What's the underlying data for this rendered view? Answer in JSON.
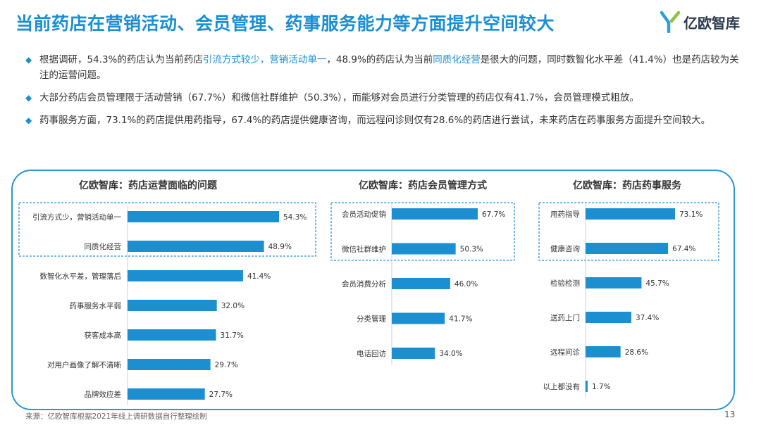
{
  "title": "当前药店在营销活动、会员管理、药事服务能力等方面提升空间较大",
  "logo": {
    "text": "亿欧智库",
    "icon": "logo-y-icon"
  },
  "bullets": [
    {
      "p1": "根据调研，54.3%的药店认为当前药店",
      "h1": "引流方式较少，营销活动单一",
      "p2": "，48.9%的药店认为当前",
      "h2": "同质化经营",
      "p3": "是很大的问题，同时数智化水平差（41.4%）也是药店较为关注的运营问题。"
    },
    {
      "text": "大部分药店会员管理限于活动营销（67.7%）和微信社群维护（50.3%），而能够对会员进行分类管理的药店仅有41.7%，会员管理模式粗放。"
    },
    {
      "text": "药事服务方面，73.1%的药店提供用药指导，67.4%的药店提供健康咨询，而远程问诊则仅有28.6%的药店进行尝试，未来药店在药事服务方面提升空间较大。"
    }
  ],
  "colors": {
    "accent": "#1b8fd3",
    "bar": "#1c8fd0",
    "frame": "#2b95d6"
  },
  "chart_data": [
    {
      "type": "bar",
      "orientation": "horizontal",
      "title": "亿欧智库：药店运营面临的问题",
      "categories": [
        "引流方式少，营销活动单一",
        "同质化经营",
        "数智化水平差，管理落后",
        "药事服务水平弱",
        "获客成本高",
        "对用户画像了解不清晰",
        "品牌效应差"
      ],
      "values": [
        54.3,
        48.9,
        41.4,
        32.0,
        31.7,
        29.7,
        27.7
      ],
      "labels": [
        "54.3%",
        "48.9%",
        "41.4%",
        "32.0%",
        "31.7%",
        "29.7%",
        "27.7%"
      ],
      "highlighted": 2
    },
    {
      "type": "bar",
      "orientation": "horizontal",
      "title": "亿欧智库：药店会员管理方式",
      "categories": [
        "会员活动促销",
        "微信社群维护",
        "会员消费分析",
        "分类管理",
        "电话回访"
      ],
      "values": [
        67.7,
        50.3,
        46.0,
        41.7,
        34.0
      ],
      "labels": [
        "67.7%",
        "50.3%",
        "46.0%",
        "41.7%",
        "34.0%"
      ],
      "highlighted": 2
    },
    {
      "type": "bar",
      "orientation": "horizontal",
      "title": "亿欧智库：药店药事服务",
      "categories": [
        "用药指导",
        "健康咨询",
        "检验检测",
        "送药上门",
        "远程问诊",
        "以上都没有"
      ],
      "values": [
        73.1,
        67.4,
        45.7,
        37.4,
        28.6,
        1.7
      ],
      "labels": [
        "73.1%",
        "67.4%",
        "45.7%",
        "37.4%",
        "28.6%",
        "1.7%"
      ],
      "highlighted": 2
    }
  ],
  "footer": "来源：亿欧智库根据2021年线上调研数据自行整理绘制",
  "page_number": "13"
}
